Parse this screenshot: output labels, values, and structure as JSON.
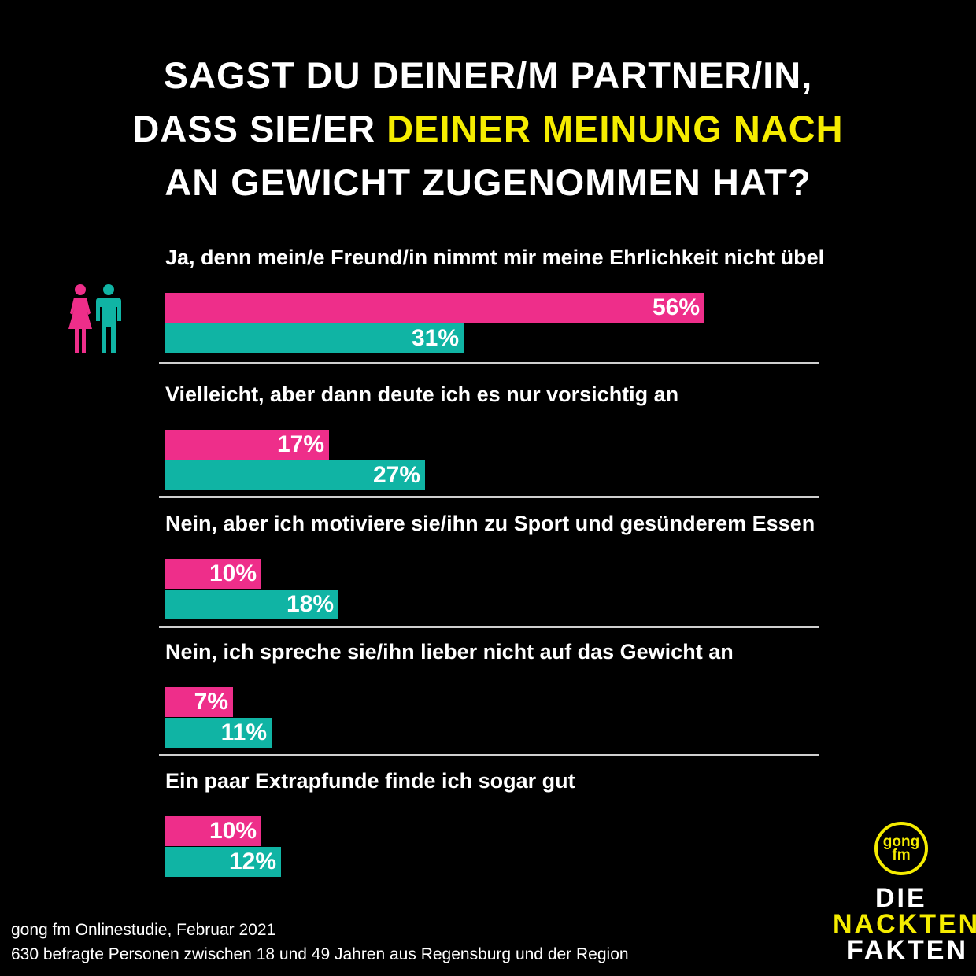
{
  "title": {
    "line1": "SAGST DU DEINER/M PARTNER/IN,",
    "line2_prefix": "DASS SIE/ER ",
    "line2_highlight": "DEINER MEINUNG NACH",
    "line3": "AN GEWICHT ZUGENOMMEN HAT?"
  },
  "colors": {
    "female": "#ee2e8a",
    "male": "#10b4a4",
    "highlight": "#f5ec00",
    "background": "#000000"
  },
  "icons": [
    "female-figure-icon",
    "male-figure-icon"
  ],
  "chart_data": {
    "type": "bar",
    "orientation": "horizontal",
    "categories": [
      "Ja, denn mein/e Freund/in nimmt mir meine Ehrlichkeit nicht übel",
      "Vielleicht, aber dann deute ich es nur vorsichtig an",
      "Nein, aber ich motiviere sie/ihn zu Sport und gesünderem Essen",
      "Nein, ich spreche sie/ihn lieber nicht auf das Gewicht an",
      "Ein paar Extrapfunde finde ich sogar gut"
    ],
    "series": [
      {
        "values": [
          56,
          17,
          10,
          7,
          10
        ],
        "labels": [
          "56%",
          "17%",
          "10%",
          "7%",
          "10%"
        ],
        "color": "#ee2e8a"
      },
      {
        "values": [
          31,
          27,
          18,
          11,
          12
        ],
        "labels": [
          "31%",
          "27%",
          "18%",
          "11%",
          "12%"
        ],
        "color": "#10b4a4"
      }
    ],
    "unit": "%",
    "xlim": [
      0,
      100
    ]
  },
  "footer": {
    "source": "gong fm Onlinestudie, Februar 2021",
    "sample": "630 befragte Personen zwischen 18 und 49 Jahren aus Regensburg und der Region"
  },
  "brand": {
    "logo_top": "gong",
    "logo_bottom": "fm",
    "line1": "DIE",
    "line2": "NACKTEN",
    "line3": "FAKTEN"
  }
}
